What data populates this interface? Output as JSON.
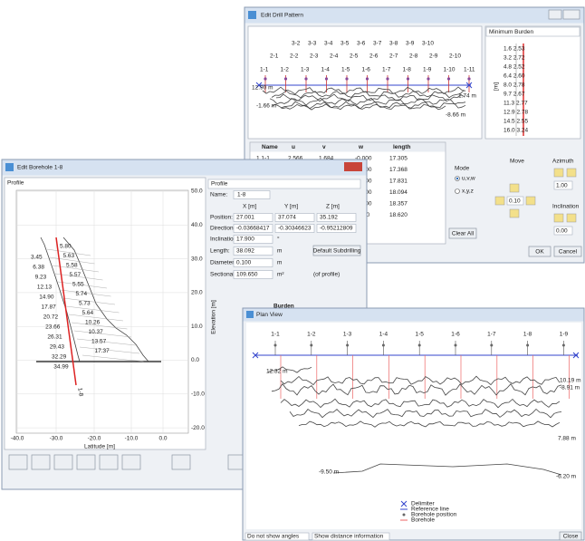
{
  "drill_pattern": {
    "title": "Edit Drill Pattern",
    "row3": [
      "3-2",
      "3-3",
      "3-4",
      "3-5",
      "3-6",
      "3-7",
      "3-8",
      "3-9",
      "3-10"
    ],
    "row2": [
      "2-1",
      "2-2",
      "2-3",
      "2-4",
      "2-5",
      "2-6",
      "2-7",
      "2-8",
      "2-9",
      "2-10"
    ],
    "row1": [
      "1-1",
      "1-2",
      "1-3",
      "1-4",
      "1-5",
      "1-6",
      "1-7",
      "1-8",
      "1-9",
      "1-10",
      "1-11"
    ],
    "plot_labels": [
      "12.90 m",
      "-1.66 m",
      "1.74 m",
      "-8.66 m"
    ],
    "burden_dropdown": "Minimum Burden",
    "burden_axis": "[m]",
    "burden_list": [
      "1.6  2.53",
      "3.2  2.72",
      "4.8  2.52",
      "6.4  2.60",
      "8.0  2.78",
      "9.7  2.67",
      "11.3  2.77",
      "12.9  2.78",
      "14.5  2.55",
      "16.0  3.24"
    ],
    "table": {
      "columns": [
        "Name",
        "u",
        "v",
        "w",
        "length"
      ],
      "rows": [
        {
          "name": "1  1-1",
          "u": "2.566",
          "v": "1.684",
          "w": "-0.000",
          "length": "17.305"
        },
        {
          "w": "-0.000",
          "length": "17.368"
        },
        {
          "w": "-0.000",
          "length": "17.831"
        },
        {
          "w": "-0.000",
          "length": "18.094"
        },
        {
          "w": "-0.000",
          "length": "18.357"
        },
        {
          "w": "0.000",
          "length": "18.620"
        }
      ]
    },
    "mode_label": "Mode",
    "mode_options": [
      "u,v,w",
      "x,y,z"
    ],
    "move_label": "Move",
    "move_value": "0.10",
    "azimuth_label": "Azimuth",
    "azimuth_value": "1.00",
    "inclination_label": "Inclination",
    "inclination_value": "0.00",
    "clear_button": "Clear All",
    "ok_button": "OK",
    "cancel_button": "Cancel"
  },
  "borehole": {
    "title": "Edit Borehole 1-8",
    "heading": "Profile",
    "y_axis_label": "Elevation [m]",
    "x_axis_label": "Latitude [m]",
    "y_ticks": [
      "50.0",
      "40.0",
      "30.0",
      "20.0",
      "10.0",
      "0.0",
      "-10.0",
      "-20.0"
    ],
    "x_ticks": [
      "-40.0",
      "-30.0",
      "-20.0",
      "-10.0",
      "0.0"
    ],
    "tag": "1-8",
    "left_values": [
      "3.45",
      "6.38",
      "9.23",
      "12.13",
      "14.90",
      "17.87",
      "20.72",
      "23.66",
      "26.31",
      "29.43",
      "32.29",
      "34.99"
    ],
    "right_values": [
      "5.80",
      "5.63",
      "5.58",
      "5.57",
      "5.55",
      "5.74",
      "5.73",
      "5.64",
      "10.26",
      "10.37",
      "13.57",
      "17.37"
    ],
    "dropdown": "Profile",
    "name_label": "Name:",
    "name_value": "1-8",
    "columns": [
      "X [m]",
      "Y [m]",
      "Z [m]"
    ],
    "position_label": "Position:",
    "position": [
      "27.001",
      "37.074",
      "35.192"
    ],
    "direction_label": "Direction:",
    "direction": [
      "-0.03668417",
      "-0.30346623",
      "-0.95212809"
    ],
    "inclination_label": "Inclination:",
    "inclination_value": "17.900",
    "inclination_unit": "°",
    "length_label": "Length:",
    "length_value": "38.092",
    "length_unit": "m",
    "subdrilling_button": "Default Subdrilling",
    "diameter_label": "Diameter:",
    "diameter_value": "0.100",
    "diameter_unit": "m",
    "area_label": "Sectional Area:",
    "area_value": "109.650",
    "area_unit": "m²",
    "area_note": "(of profile)",
    "burden_heading": "Burden"
  },
  "plan_view": {
    "title": "Plan View",
    "labels": [
      "1-1",
      "1-2",
      "1-3",
      "1-4",
      "1-5",
      "1-6",
      "1-7",
      "1-8",
      "1-9"
    ],
    "plot_labels": [
      "12.32 m",
      "10.19 m",
      "-8.91 m",
      "7.88 m",
      "-9.50 m",
      "-6.20 m"
    ],
    "legend": [
      "Delimiter",
      "Reference line",
      "Borehole position",
      "Borehole"
    ],
    "angles_dropdown": "Do not show angles",
    "distance_dropdown": "Show distance information",
    "close_button": "Close"
  }
}
